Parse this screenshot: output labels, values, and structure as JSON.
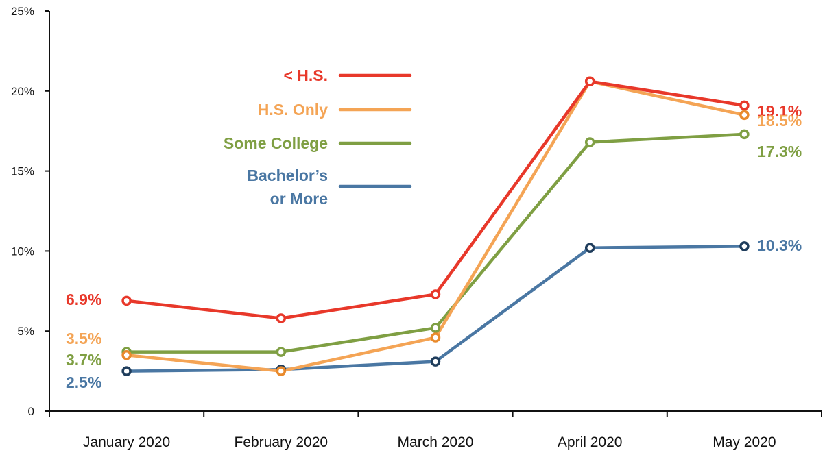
{
  "chart_data": {
    "type": "line",
    "categories": [
      "January 2020",
      "February 2020",
      "March 2020",
      "April 2020",
      "May 2020"
    ],
    "y_ticks": [
      0,
      5,
      10,
      15,
      20,
      25
    ],
    "y_tick_labels": [
      "0",
      "5%",
      "10%",
      "15%",
      "20%",
      "25%"
    ],
    "ylim": [
      0,
      25
    ],
    "grid": false,
    "legend_position": "top-left",
    "series": [
      {
        "name": "< H.S.",
        "color": "#e8382a",
        "values": [
          6.9,
          5.8,
          7.3,
          20.6,
          19.1
        ],
        "start_label": "6.9%",
        "end_label": "19.1%"
      },
      {
        "name": "H.S. Only",
        "color": "#f4a455",
        "values": [
          3.5,
          2.5,
          4.6,
          20.6,
          18.5
        ],
        "start_label": "3.5%",
        "end_label": "18.5%"
      },
      {
        "name": "Some College",
        "color": "#7f9f43",
        "values": [
          3.7,
          3.7,
          5.2,
          16.8,
          17.3
        ],
        "start_label": "3.7%",
        "end_label": "17.3%"
      },
      {
        "name": "Bachelor’s\nor More",
        "color": "#4a77a3",
        "values": [
          2.5,
          2.6,
          3.1,
          10.2,
          10.3
        ],
        "start_label": "2.5%",
        "end_label": "10.3%"
      }
    ]
  }
}
